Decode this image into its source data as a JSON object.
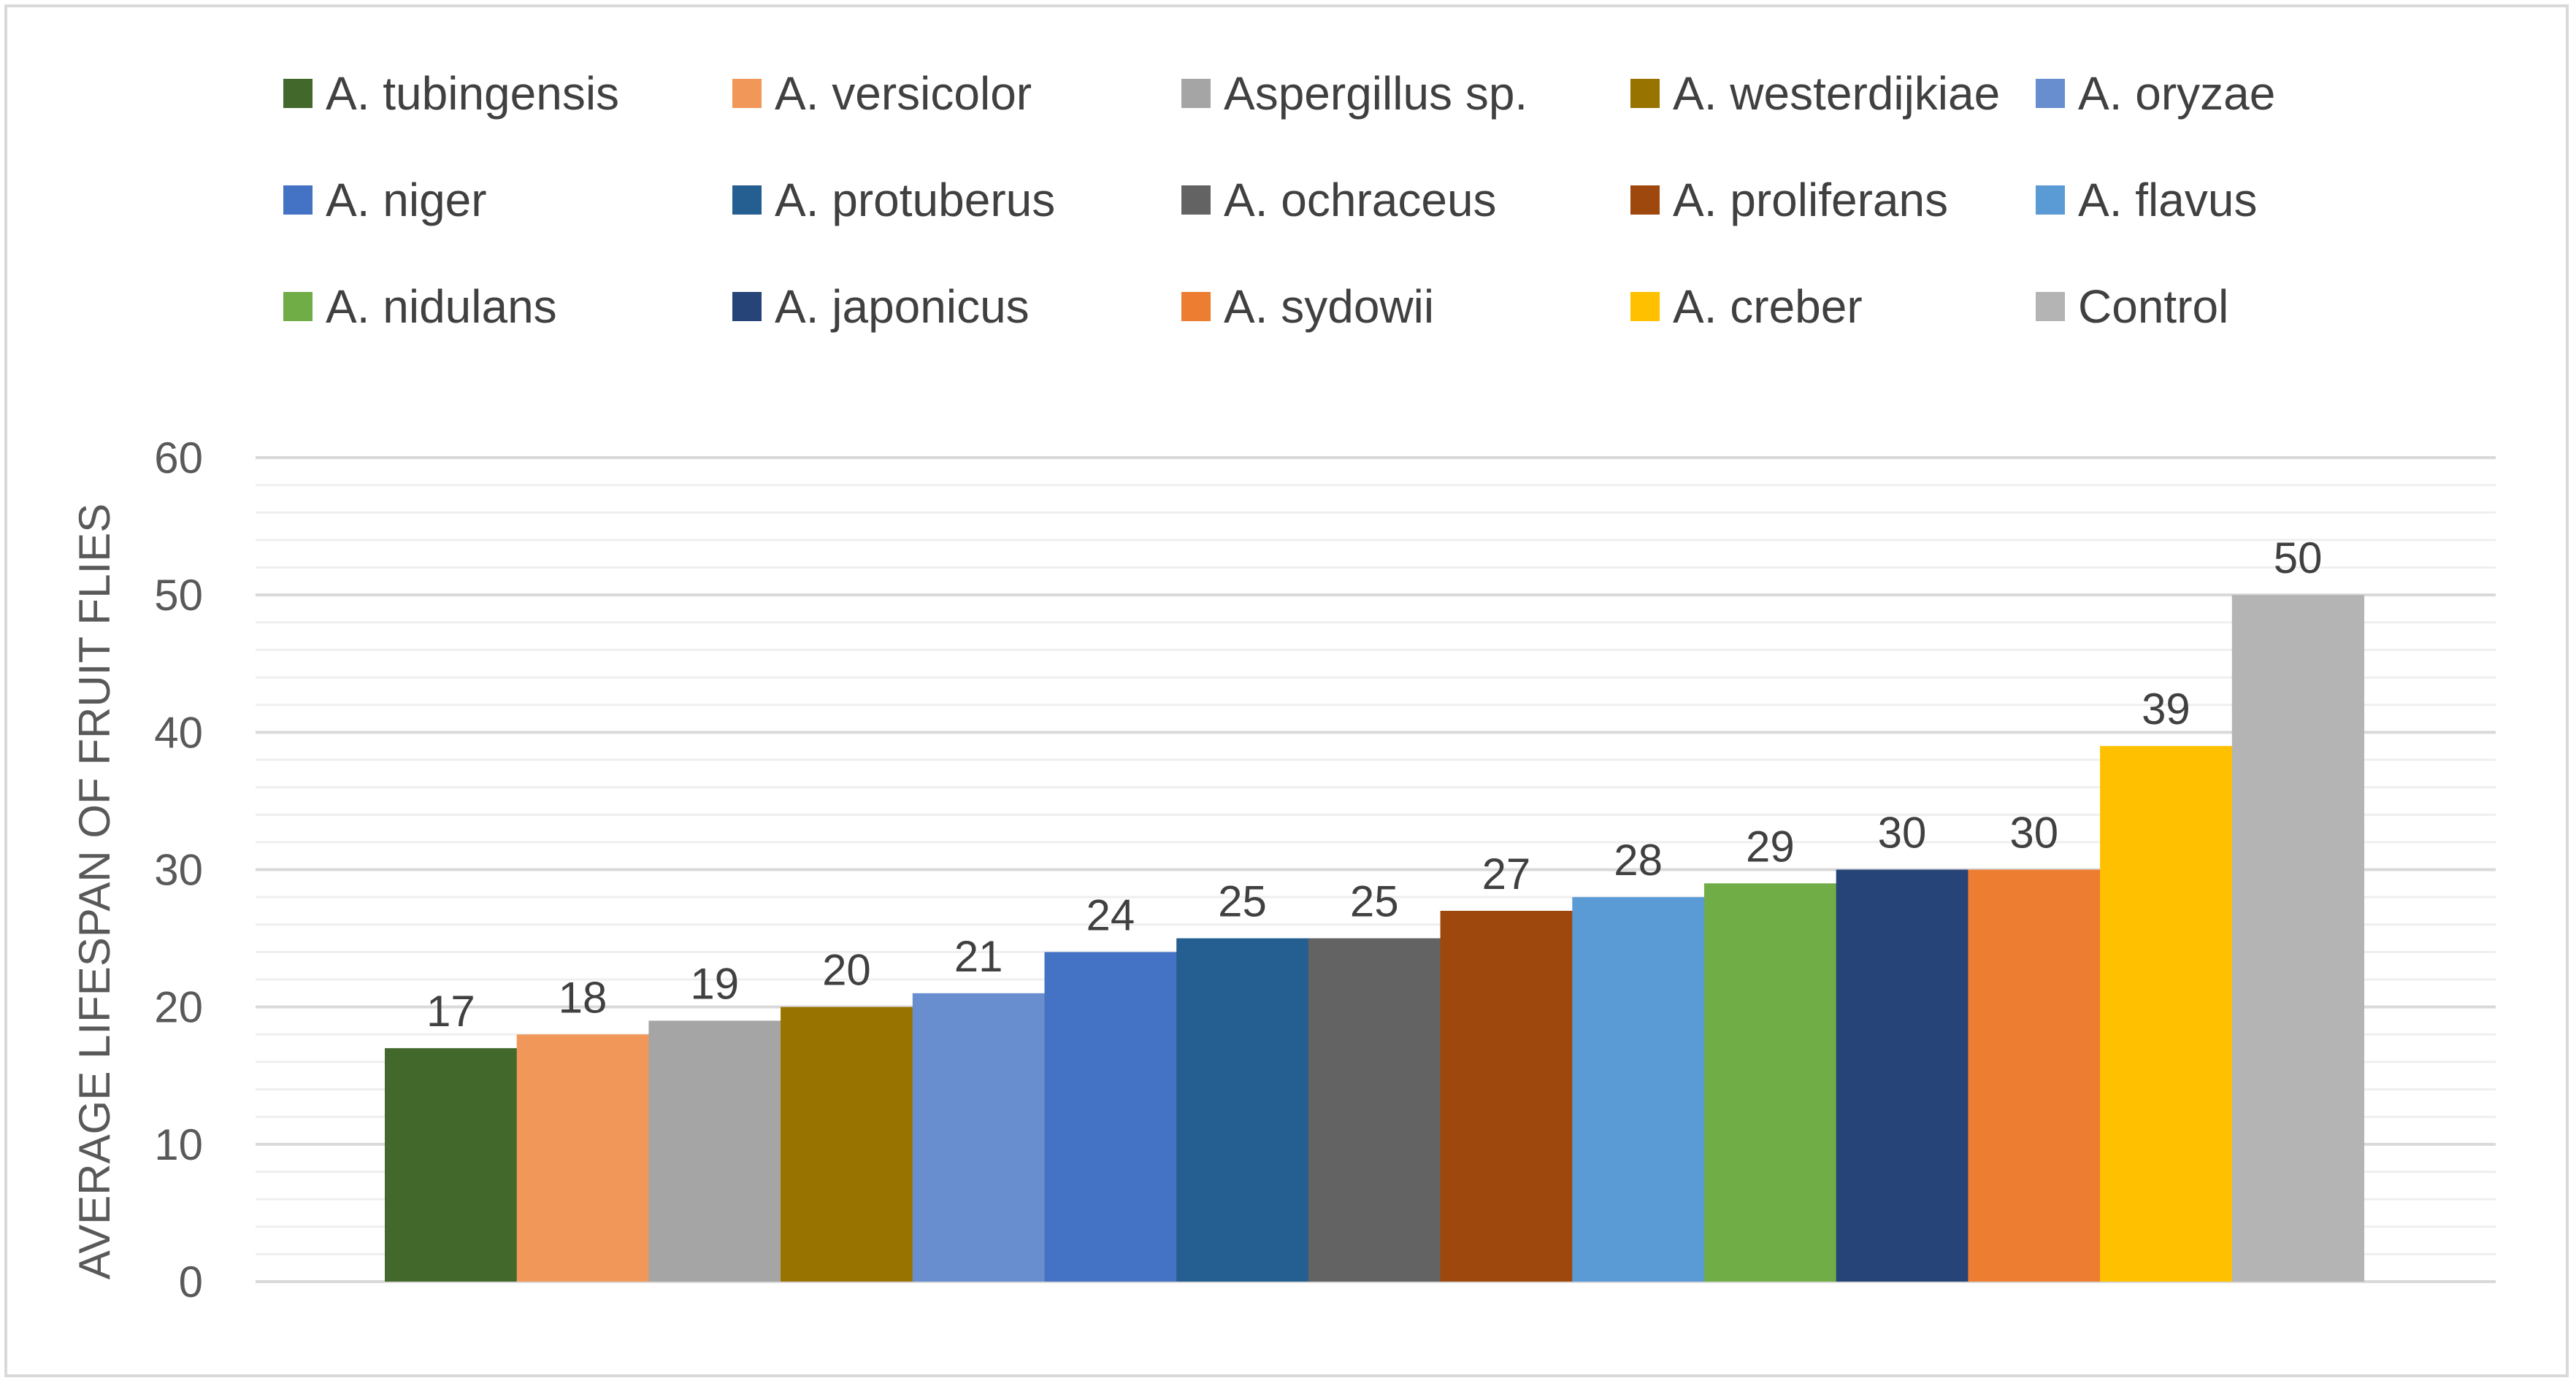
{
  "chart_data": {
    "type": "bar",
    "title": "",
    "xlabel": "",
    "ylabel": "AVERAGE LIFESPAN OF FRUIT FLIES",
    "ylim": [
      0,
      60
    ],
    "yticks": [
      "0",
      "10",
      "20",
      "30",
      "40",
      "50",
      "60"
    ],
    "grid": "major and minor horizontal gridlines",
    "legend_position": "top",
    "series": [
      {
        "name": "A. tubingensis",
        "value": 17,
        "label": "17",
        "color": "#43682B"
      },
      {
        "name": "A. versicolor",
        "value": 18,
        "label": "18",
        "color": "#F1975A"
      },
      {
        "name": "Aspergillus sp.",
        "value": 19,
        "label": "19",
        "color": "#A5A5A5"
      },
      {
        "name": "A. westerdijkiae",
        "value": 20,
        "label": "20",
        "color": "#997300"
      },
      {
        "name": "A. oryzae",
        "value": 21,
        "label": "21",
        "color": "#698ED0"
      },
      {
        "name": "A. niger",
        "value": 24,
        "label": "24",
        "color": "#4472C4"
      },
      {
        "name": "A. protuberus",
        "value": 25,
        "label": "25",
        "color": "#255E91"
      },
      {
        "name": "A. ochraceus",
        "value": 25,
        "label": "25",
        "color": "#636363"
      },
      {
        "name": "A. proliferans",
        "value": 27,
        "label": "27",
        "color": "#9E480E"
      },
      {
        "name": "A. flavus",
        "value": 28,
        "label": "28",
        "color": "#5B9BD5"
      },
      {
        "name": "A. nidulans",
        "value": 29,
        "label": "29",
        "color": "#70AD47"
      },
      {
        "name": "A. japonicus",
        "value": 30,
        "label": "30",
        "color": "#264478"
      },
      {
        "name": "A. sydowii",
        "value": 30,
        "label": "30",
        "color": "#ED7D31"
      },
      {
        "name": "A. creber",
        "value": 39,
        "label": "39",
        "color": "#FFC000"
      },
      {
        "name": "Control",
        "value": 50,
        "label": "50",
        "color": "#B4B4B4"
      }
    ]
  }
}
